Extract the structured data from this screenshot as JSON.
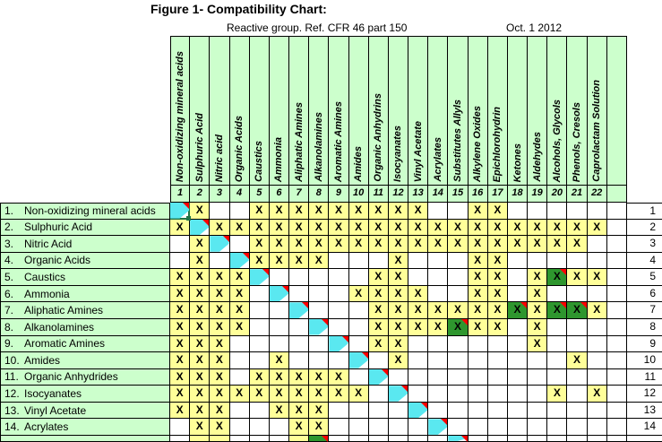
{
  "title": "Figure 1- Compatibility Chart:",
  "subtitle": "Reactive group. Ref. CFR 46 part 150",
  "date_note": "Oct. 1 2012",
  "chart_data": {
    "type": "heatmap",
    "title": "Figure 1- Compatibility Chart:",
    "subtitle": "Reactive group. Ref. CFR 46 part 150",
    "date": "Oct. 1 2012",
    "cell_codes": {
      ".": "blank white cell",
      "X": "X mark on yellow cell",
      "G": "X mark on dark green cell with red comment corner",
      "D": "diagonal self-pair cyan cell with red comment corner",
      "S": "selected diagonal cyan cell (green selection border + fill handle)"
    },
    "colors": {
      "header_green": "#CCFFCC",
      "mark_yellow": "#FFFF99",
      "diagonal_cyan": "#5AE8F0",
      "noted_green": "#2E962E",
      "comment_red": "#FF0000",
      "selection_green": "#217346",
      "gridline": "#000000"
    },
    "columns": [
      {
        "num": "1",
        "label": "Non-oxidizing mineral acids"
      },
      {
        "num": "2",
        "label": "Sulphuric Acid"
      },
      {
        "num": "3",
        "label": "Nitric acid"
      },
      {
        "num": "4",
        "label": "Organic Acids"
      },
      {
        "num": "5",
        "label": "Caustics"
      },
      {
        "num": "6",
        "label": "Ammonia"
      },
      {
        "num": "7",
        "label": "Aliphatic Amines"
      },
      {
        "num": "8",
        "label": "Alkanolamines"
      },
      {
        "num": "9",
        "label": "Aromatic Amines"
      },
      {
        "num": "10",
        "label": "Amides"
      },
      {
        "num": "11",
        "label": "Organic Anhydrins"
      },
      {
        "num": "12",
        "label": "Isocyanates"
      },
      {
        "num": "13",
        "label": "Vinyl Acetate"
      },
      {
        "num": "14",
        "label": "Acrylates"
      },
      {
        "num": "15",
        "label": "Substitutes Allyls"
      },
      {
        "num": "16",
        "label": "Alkylene Oxides"
      },
      {
        "num": "17",
        "label": "Epichlorohydrin"
      },
      {
        "num": "18",
        "label": "Ketones"
      },
      {
        "num": "19",
        "label": "Aldehydes"
      },
      {
        "num": "20",
        "label": "Alcohols, Glycols"
      },
      {
        "num": "21",
        "label": "Phenols, Cresols"
      },
      {
        "num": "22",
        "label": "Caprolactam Solution"
      }
    ],
    "rows": [
      {
        "num": "1.",
        "label": "Non-oxidizing mineral acids",
        "right_num": "1",
        "cells": "SX..XXXXXXXXX..XX....."
      },
      {
        "num": "2.",
        "label": "Sulphuric Acid",
        "right_num": "2",
        "cells": "XDXXXXXXXXXXXXXXXXXXXX"
      },
      {
        "num": "3.",
        "label": "Nitric Acid",
        "right_num": "3",
        "cells": ".XD.XXXXXXXXXXXXXXXXX."
      },
      {
        "num": "4.",
        "label": "Organic Acids",
        "right_num": "4",
        "cells": ".X.DXXXX...X...XX....."
      },
      {
        "num": "5.",
        "label": "Caustics",
        "right_num": "5",
        "cells": "XXXXD.....XX...XX.XGXX"
      },
      {
        "num": "6.",
        "label": "Ammonia",
        "right_num": "6",
        "cells": "XXXX.D...XXXX..XX.X..."
      },
      {
        "num": "7.",
        "label": "Aliphatic Amines",
        "right_num": "7",
        "cells": "XXXX..D...XXXXXXXGXGGX"
      },
      {
        "num": "8.",
        "label": "Alkanolamines",
        "right_num": "8",
        "cells": "XXXX...D..XXXXGXX.X..."
      },
      {
        "num": "9.",
        "label": "Aromatic Amines",
        "right_num": "9",
        "cells": "XXX.....D.XX......X..."
      },
      {
        "num": "10.",
        "label": "Amides",
        "right_num": "10",
        "cells": "XXX..X...D.X........X."
      },
      {
        "num": "11.",
        "label": "Organic Anhydrides",
        "right_num": "11",
        "cells": "XXX.XXXXX.D..........."
      },
      {
        "num": "12.",
        "label": "Isocyanates",
        "right_num": "12",
        "cells": "XXXXXXXXXX.D.......X.X"
      },
      {
        "num": "13.",
        "label": "Vinyl Acetate",
        "right_num": "13",
        "cells": "XXX..XXX....D........."
      },
      {
        "num": "14.",
        "label": "Acrylates",
        "right_num": "14",
        "cells": ".XX...XX.....D........"
      }
    ],
    "partial_row": {
      "cells": ".XX...XG......D......."
    }
  }
}
